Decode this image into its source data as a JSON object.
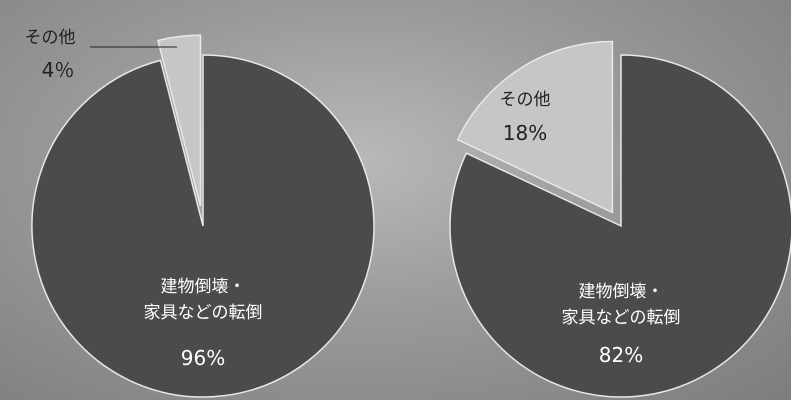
{
  "chart_data": [
    {
      "type": "pie",
      "categories": [
        "建物倒壊・\n家具などの転倒",
        "その他"
      ],
      "values": [
        96,
        4
      ],
      "value_labels": [
        "96%",
        "4％"
      ],
      "colors": [
        "#4b4b4b",
        "#c6c6c6"
      ]
    },
    {
      "type": "pie",
      "categories": [
        "建物倒壊・\n家具などの転倒",
        "その他"
      ],
      "values": [
        82,
        18
      ],
      "value_labels": [
        "82%",
        "18%"
      ],
      "colors": [
        "#4b4b4b",
        "#c6c6c6"
      ]
    }
  ]
}
